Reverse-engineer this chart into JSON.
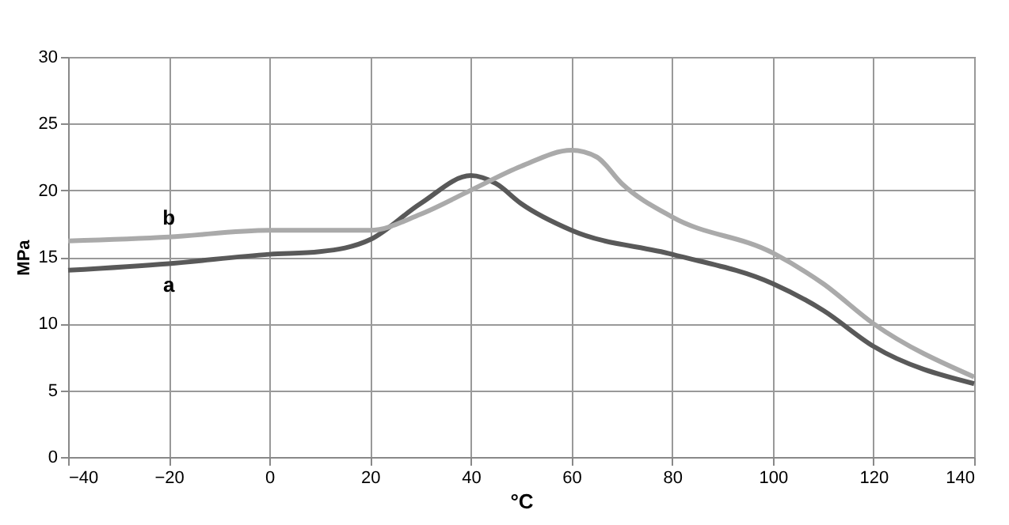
{
  "chart_data": {
    "type": "line",
    "xlabel": "°C",
    "ylabel": "MPa",
    "xlim": [
      -40,
      140
    ],
    "xticks": [
      -40,
      -20,
      0,
      20,
      40,
      60,
      80,
      100,
      120,
      140
    ],
    "ylim": [
      0,
      30
    ],
    "yticks": [
      0,
      5,
      10,
      15,
      20,
      25,
      30
    ],
    "grid": true,
    "line_style": "solid",
    "marker": "none",
    "series": [
      {
        "name": "a",
        "color": "#595959",
        "x": [
          -40,
          -20,
          0,
          10,
          20,
          30,
          40,
          45,
          50,
          60,
          80,
          100,
          110,
          120,
          140
        ],
        "values": [
          14,
          14.5,
          15.2,
          15.4,
          16.3,
          19,
          21.1,
          20.5,
          19,
          17,
          15.2,
          13,
          11,
          8.3,
          5.5
        ]
      },
      {
        "name": "b",
        "color": "#aaaaaa",
        "x": [
          -40,
          -20,
          0,
          20,
          30,
          40,
          50,
          60,
          65,
          70,
          80,
          100,
          110,
          120,
          140
        ],
        "values": [
          16.2,
          16.5,
          17,
          17,
          18.2,
          20,
          21.8,
          23,
          22.5,
          20.5,
          18,
          15.3,
          13,
          10,
          6
        ]
      }
    ]
  }
}
